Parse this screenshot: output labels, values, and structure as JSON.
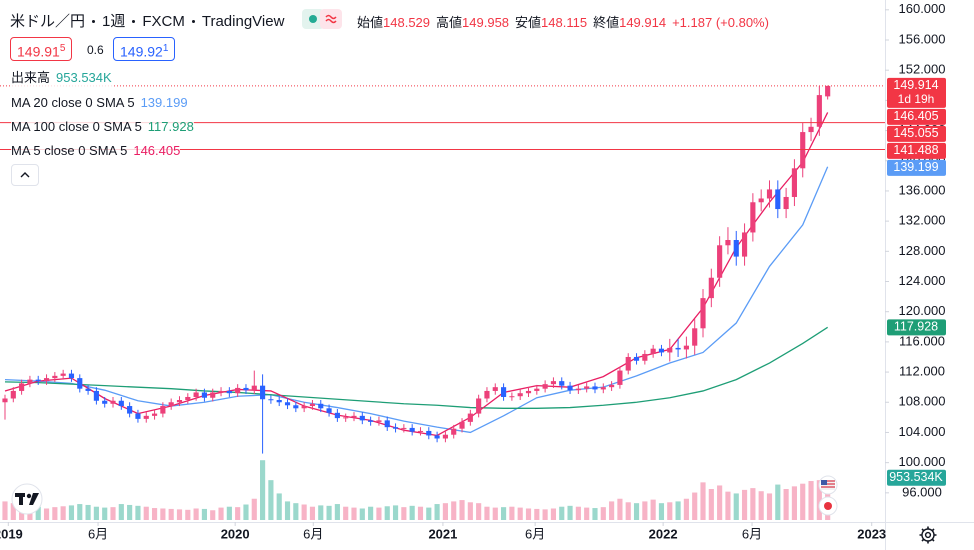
{
  "header": {
    "symbol": "米ドル／円",
    "interval": "1週",
    "source": "FXCM",
    "platform": "TradingView",
    "ohlc": [
      {
        "label": "始値",
        "value": "148.529"
      },
      {
        "label": "高値",
        "value": "149.958"
      },
      {
        "label": "安値",
        "value": "148.115"
      },
      {
        "label": "終値",
        "value": "149.914"
      }
    ],
    "change": "+1.187 (+0.80%)",
    "sell": {
      "price": "149.91",
      "pip": "5"
    },
    "spread": "0.6",
    "buy": {
      "price": "149.92",
      "pip": "1"
    }
  },
  "chart_data": {
    "type": "candlestick",
    "xlim": [
      -0.6,
      105.9
    ],
    "xticks": [
      {
        "value": 0.4,
        "label": "2019"
      },
      {
        "value": 11.2,
        "label": "6月"
      },
      {
        "value": 27.7,
        "label": "2020"
      },
      {
        "value": 37.1,
        "label": "6月"
      },
      {
        "value": 52.7,
        "label": "2021"
      },
      {
        "value": 63.8,
        "label": "6月"
      },
      {
        "value": 79.2,
        "label": "2022"
      },
      {
        "value": 89.9,
        "label": "6月"
      },
      {
        "value": 104.3,
        "label": "2023"
      }
    ],
    "ylim": [
      92.4,
      161.3
    ],
    "yticks": [
      {
        "value": 96,
        "label": "96.000"
      },
      {
        "value": 100,
        "label": "100.000"
      },
      {
        "value": 104,
        "label": "104.000"
      },
      {
        "value": 108,
        "label": "108.000"
      },
      {
        "value": 112,
        "label": "112.000"
      },
      {
        "value": 116,
        "label": "116.000"
      },
      {
        "value": 120,
        "label": "120.000"
      },
      {
        "value": 124,
        "label": "124.000"
      },
      {
        "value": 128,
        "label": "128.000"
      },
      {
        "value": 132,
        "label": "132.000"
      },
      {
        "value": 136,
        "label": "136.000"
      },
      {
        "value": 140,
        "label": "140.000"
      },
      {
        "value": 144,
        "label": "144.000"
      },
      {
        "value": 148,
        "label": "148.000"
      },
      {
        "value": 152,
        "label": "152.000"
      },
      {
        "value": 156,
        "label": "156.000"
      },
      {
        "value": 160,
        "label": "160.000"
      }
    ],
    "up_color": "#ec407a",
    "down_color": "#2962ff",
    "open": [
      108.0,
      108.5,
      109.5,
      110.5,
      111.0,
      110.8,
      111.2,
      111.5,
      111.8,
      111.2,
      109.8,
      109.5,
      108.2,
      107.8,
      108.2,
      107.5,
      106.5,
      105.8,
      106.2,
      106.5,
      107.5,
      108.0,
      108.3,
      108.7,
      109.3,
      108.6,
      109.3,
      109.5,
      109.2,
      109.9,
      109.6,
      110.2,
      108.4,
      108.3,
      108.0,
      107.6,
      107.2,
      107.5,
      107.8,
      107.2,
      106.6,
      105.9,
      106.0,
      106.2,
      105.6,
      105.4,
      105.6,
      104.7,
      104.5,
      104.6,
      104.1,
      104.2,
      103.6,
      103.2,
      103.7,
      104.5,
      105.4,
      106.5,
      108.5,
      109.5,
      110.0,
      108.7,
      108.8,
      109.2,
      109.5,
      109.8,
      110.4,
      110.8,
      110.2,
      109.6,
      109.8,
      110.1,
      109.7,
      110.0,
      110.3,
      112.2,
      114.0,
      113.5,
      114.4,
      115.1,
      114.6,
      115.2,
      115.0,
      115.5,
      117.8,
      121.8,
      124.5,
      128.8,
      129.5,
      127.3,
      130.5,
      134.5,
      135.0,
      136.2,
      133.6,
      135.2,
      139.0,
      143.8,
      144.5,
      148.529
    ],
    "high": [
      109.0,
      110.0,
      111.0,
      111.5,
      111.5,
      111.7,
      112.0,
      112.3,
      112.3,
      111.7,
      110.3,
      110.0,
      108.7,
      108.7,
      108.7,
      108.0,
      107.0,
      106.7,
      107.0,
      108.0,
      108.5,
      108.8,
      109.2,
      109.8,
      109.8,
      109.8,
      110.0,
      110.0,
      110.4,
      110.4,
      112.2,
      111.7,
      108.9,
      108.8,
      108.5,
      108.1,
      108.0,
      108.3,
      108.3,
      107.7,
      107.1,
      106.5,
      106.7,
      106.7,
      106.1,
      106.1,
      106.1,
      105.2,
      105.1,
      105.1,
      104.7,
      104.7,
      104.1,
      104.2,
      105.0,
      105.9,
      107.0,
      109.0,
      110.0,
      110.5,
      110.5,
      109.3,
      109.7,
      110.0,
      110.3,
      110.9,
      111.3,
      111.3,
      110.7,
      110.3,
      110.6,
      110.6,
      110.5,
      110.8,
      112.7,
      114.5,
      114.5,
      114.9,
      115.6,
      115.6,
      116.4,
      116.4,
      116.7,
      119.0,
      123.0,
      125.7,
      130.0,
      131.2,
      130.7,
      131.7,
      135.7,
      136.2,
      137.4,
      137.4,
      136.4,
      140.2,
      145.0,
      145.7,
      149.9,
      149.958
    ],
    "low": [
      105.7,
      108.0,
      109.0,
      110.0,
      110.3,
      110.3,
      110.7,
      111.0,
      110.7,
      109.3,
      109.0,
      107.7,
      107.3,
      107.3,
      107.0,
      106.0,
      105.3,
      105.3,
      105.7,
      106.0,
      107.0,
      107.5,
      107.8,
      108.2,
      108.1,
      108.1,
      108.8,
      108.7,
      108.7,
      109.1,
      109.1,
      101.2,
      107.8,
      107.5,
      107.1,
      106.7,
      106.7,
      107.0,
      106.7,
      106.1,
      105.4,
      105.4,
      105.5,
      105.1,
      104.9,
      104.9,
      104.2,
      104.0,
      104.0,
      103.6,
      103.6,
      103.1,
      102.7,
      102.7,
      103.2,
      104.0,
      104.9,
      106.0,
      108.0,
      109.0,
      108.2,
      108.2,
      108.3,
      108.7,
      109.0,
      109.3,
      109.9,
      109.7,
      109.1,
      109.1,
      109.3,
      109.2,
      109.2,
      109.5,
      109.8,
      111.7,
      113.0,
      113.0,
      113.9,
      114.1,
      113.4,
      114.0,
      113.8,
      114.3,
      116.6,
      120.6,
      123.3,
      127.6,
      126.1,
      126.1,
      129.3,
      133.3,
      133.8,
      132.4,
      132.4,
      134.0,
      137.8,
      142.6,
      143.3,
      148.115
    ],
    "close": [
      108.5,
      109.5,
      110.5,
      111.0,
      110.8,
      111.2,
      111.5,
      111.8,
      111.2,
      109.8,
      109.5,
      108.2,
      107.8,
      108.2,
      107.5,
      106.5,
      105.8,
      106.2,
      106.5,
      107.5,
      108.0,
      108.3,
      108.7,
      109.3,
      108.6,
      109.3,
      109.5,
      109.2,
      109.9,
      109.6,
      110.2,
      108.4,
      108.3,
      108.0,
      107.6,
      107.2,
      107.5,
      107.8,
      107.2,
      106.6,
      105.9,
      106.0,
      106.2,
      105.6,
      105.4,
      105.6,
      104.7,
      104.5,
      104.6,
      104.1,
      104.2,
      103.6,
      103.2,
      103.7,
      104.5,
      105.4,
      106.5,
      108.5,
      109.5,
      110.0,
      108.7,
      108.8,
      109.2,
      109.5,
      109.8,
      110.4,
      110.8,
      110.2,
      109.6,
      109.8,
      110.1,
      109.7,
      110.0,
      110.3,
      112.2,
      114.0,
      113.5,
      114.4,
      115.1,
      114.6,
      115.2,
      115.0,
      115.5,
      117.8,
      121.8,
      124.5,
      128.8,
      129.5,
      127.3,
      130.5,
      134.5,
      135.0,
      136.2,
      133.6,
      135.2,
      139.0,
      143.8,
      144.5,
      148.7,
      149.914
    ],
    "volume": {
      "name": "出来高",
      "legend_value": "953.534K",
      "color": "#26a69a",
      "ylim": [
        0,
        1400
      ],
      "up_color": "#f7b3c6",
      "down_color": "#9bd8cc",
      "values": [
        420,
        380,
        310,
        280,
        300,
        260,
        290,
        310,
        330,
        360,
        340,
        300,
        280,
        290,
        360,
        340,
        320,
        300,
        270,
        260,
        250,
        240,
        230,
        260,
        250,
        220,
        280,
        300,
        290,
        350,
        480,
        1350,
        900,
        600,
        420,
        380,
        350,
        300,
        330,
        320,
        360,
        300,
        280,
        260,
        300,
        280,
        310,
        330,
        290,
        320,
        300,
        280,
        360,
        380,
        420,
        450,
        400,
        380,
        300,
        280,
        290,
        300,
        280,
        260,
        250,
        240,
        260,
        300,
        320,
        300,
        280,
        270,
        290,
        420,
        480,
        400,
        380,
        420,
        460,
        380,
        400,
        420,
        480,
        620,
        850,
        700,
        780,
        640,
        600,
        680,
        720,
        650,
        600,
        800,
        700,
        760,
        820,
        880,
        900,
        953.534
      ],
      "tag": {
        "value": 953.534,
        "label": "953.534K"
      }
    },
    "series": [
      {
        "name": "MA 20 close 0 SMA 5",
        "legend_value": "139.199",
        "color": "#5b9cf6",
        "x": [
          0,
          4,
          8,
          12,
          16,
          20,
          24,
          28,
          32,
          36,
          40,
          44,
          48,
          52,
          56,
          60,
          64,
          68,
          72,
          76,
          80,
          84,
          88,
          92,
          96,
          99
        ],
        "values": [
          111.0,
          110.8,
          110.5,
          109.6,
          108.2,
          107.5,
          108.0,
          108.8,
          109.0,
          108.0,
          107.3,
          106.5,
          105.5,
          104.7,
          104.0,
          106.2,
          108.6,
          109.6,
          110.0,
          111.5,
          113.2,
          114.6,
          118.5,
          126.0,
          131.5,
          139.199
        ]
      },
      {
        "name": "MA 100 close 0 SMA 5",
        "legend_value": "117.928",
        "color": "#1e9e76",
        "x": [
          0,
          4,
          8,
          12,
          16,
          20,
          24,
          28,
          32,
          36,
          40,
          44,
          48,
          52,
          56,
          60,
          64,
          68,
          72,
          76,
          80,
          84,
          88,
          92,
          96,
          99
        ],
        "values": [
          110.7,
          110.6,
          110.4,
          110.2,
          110.0,
          109.8,
          109.5,
          109.3,
          109.0,
          108.7,
          108.4,
          108.1,
          107.8,
          107.6,
          107.3,
          107.2,
          107.2,
          107.3,
          107.6,
          108.0,
          108.6,
          109.5,
          111.0,
          113.2,
          115.8,
          117.928
        ]
      },
      {
        "name": "MA 5 close 0 SMA 5",
        "legend_value": "146.405",
        "color": "#e91e63",
        "x": [
          0,
          4,
          8,
          12,
          16,
          20,
          24,
          28,
          32,
          36,
          40,
          44,
          48,
          52,
          56,
          60,
          64,
          68,
          72,
          76,
          80,
          84,
          88,
          92,
          96,
          99
        ],
        "values": [
          109.5,
          110.8,
          111.2,
          108.5,
          106.5,
          107.5,
          108.9,
          109.7,
          109.5,
          107.5,
          106.3,
          105.6,
          104.3,
          103.6,
          106.0,
          109.3,
          110.2,
          110.0,
          111.4,
          113.9,
          115.0,
          120.5,
          128.5,
          134.5,
          139.8,
          146.405
        ]
      }
    ],
    "price_tags": [
      {
        "value": 149.914,
        "label": "149.914",
        "sub": "1d 19h",
        "color": "#f23645",
        "line": "dotted"
      },
      {
        "value": 146.405,
        "label": "146.405",
        "color": "#f23645"
      },
      {
        "value": 145.055,
        "label": "145.055",
        "color": "#f23645",
        "line": "solid"
      },
      {
        "value": 141.488,
        "label": "141.488",
        "color": "#f23645",
        "line": "solid"
      },
      {
        "value": 139.199,
        "label": "139.199",
        "color": "#5b9cf6"
      },
      {
        "value": 117.928,
        "label": "117.928",
        "color": "#1e9e76"
      }
    ]
  }
}
